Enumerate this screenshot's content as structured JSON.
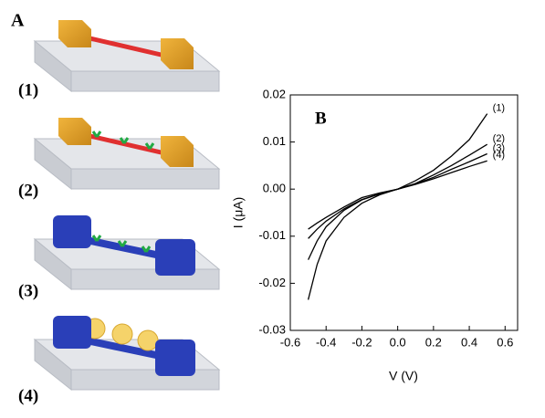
{
  "panel_a": {
    "label": "A",
    "steps": [
      "(1)",
      "(2)",
      "(3)",
      "(4)"
    ]
  },
  "chart_data": {
    "type": "line",
    "panel_label": "B",
    "x_label": "V (V)",
    "y_label": "I (μA)",
    "x": [
      -0.5,
      -0.45,
      -0.4,
      -0.3,
      -0.2,
      -0.1,
      0,
      0.1,
      0.2,
      0.3,
      0.4,
      0.5
    ],
    "series": [
      {
        "name": "(1)",
        "color": "#000000",
        "values": [
          -0.0235,
          -0.016,
          -0.011,
          -0.006,
          -0.003,
          -0.0012,
          0,
          0.0018,
          0.004,
          0.007,
          0.0105,
          0.016
        ]
      },
      {
        "name": "(2)",
        "color": "#000000",
        "values": [
          -0.015,
          -0.011,
          -0.008,
          -0.0045,
          -0.0023,
          -0.001,
          0,
          0.0012,
          0.003,
          0.005,
          0.0072,
          0.0095
        ]
      },
      {
        "name": "(3)",
        "color": "#000000",
        "values": [
          -0.0105,
          -0.0085,
          -0.0068,
          -0.0042,
          -0.0022,
          -0.001,
          0,
          0.0011,
          0.0025,
          0.0042,
          0.0058,
          0.0075
        ]
      },
      {
        "name": "(4)",
        "color": "#000000",
        "values": [
          -0.0085,
          -0.0072,
          -0.006,
          -0.0038,
          -0.0018,
          -0.0008,
          0,
          0.001,
          0.0022,
          0.0035,
          0.0048,
          0.006
        ]
      }
    ],
    "xlim": [
      -0.6,
      0.67
    ],
    "ylim": [
      -0.03,
      0.02
    ],
    "xticks": [
      -0.6,
      -0.4,
      -0.2,
      {
        "value": 0,
        "label": "0.0"
      },
      0.2,
      0.4,
      0.6
    ],
    "yticks": [
      -0.03,
      -0.02,
      -0.01,
      {
        "value": 0,
        "label": "0.00"
      },
      0.01,
      0.02
    ]
  }
}
